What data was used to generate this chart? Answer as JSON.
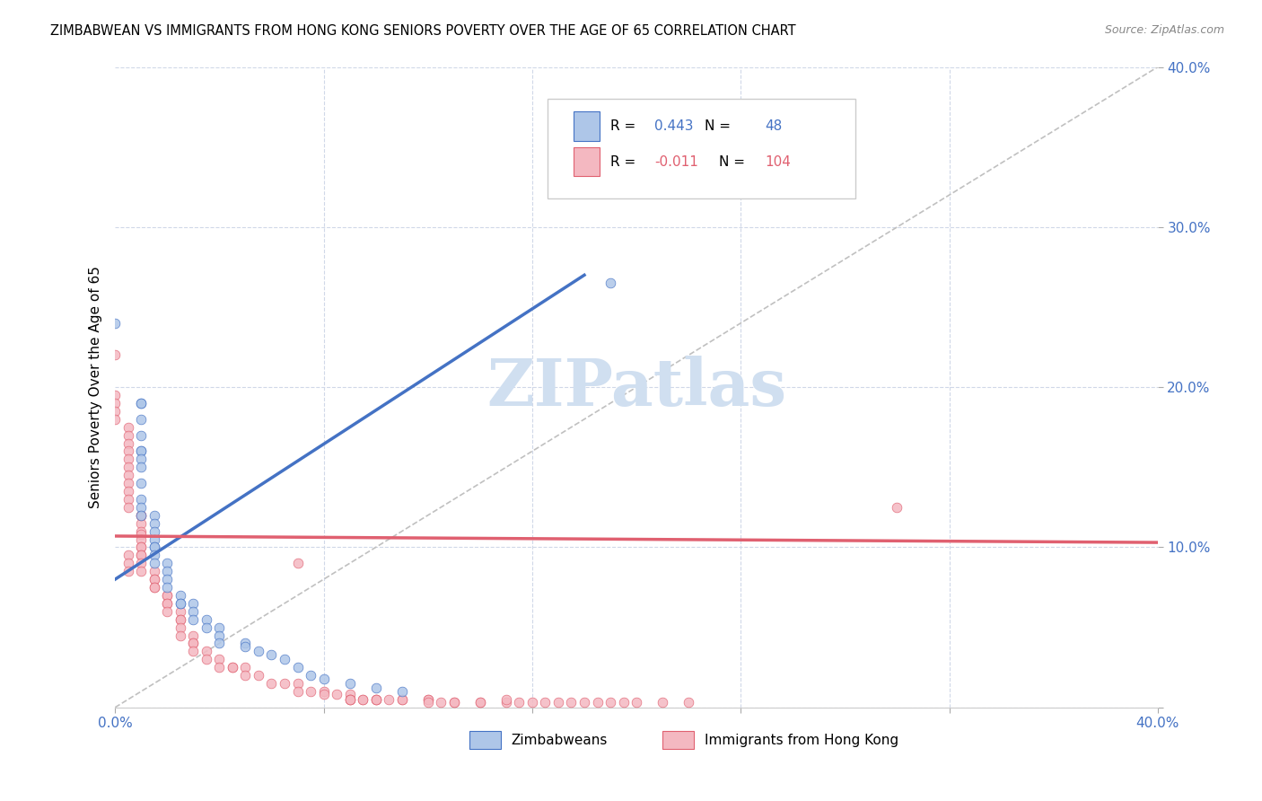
{
  "title": "ZIMBABWEAN VS IMMIGRANTS FROM HONG KONG SENIORS POVERTY OVER THE AGE OF 65 CORRELATION CHART",
  "source": "Source: ZipAtlas.com",
  "ylabel": "Seniors Poverty Over the Age of 65",
  "xlim": [
    0.0,
    0.4
  ],
  "ylim": [
    0.0,
    0.4
  ],
  "blue_color": "#4472c4",
  "pink_line_color": "#e06070",
  "blue_scatter_color": "#aec6e8",
  "pink_scatter_color": "#f4b8c1",
  "blue_line_color": "#4472c4",
  "diagonal_color": "#c0c0c0",
  "watermark": "ZIPatlas",
  "watermark_color": "#d0dff0",
  "blue_points": [
    [
      0.0,
      0.24
    ],
    [
      0.01,
      0.19
    ],
    [
      0.01,
      0.19
    ],
    [
      0.01,
      0.18
    ],
    [
      0.01,
      0.17
    ],
    [
      0.01,
      0.16
    ],
    [
      0.01,
      0.16
    ],
    [
      0.01,
      0.155
    ],
    [
      0.01,
      0.15
    ],
    [
      0.01,
      0.14
    ],
    [
      0.01,
      0.13
    ],
    [
      0.01,
      0.125
    ],
    [
      0.01,
      0.12
    ],
    [
      0.015,
      0.12
    ],
    [
      0.015,
      0.115
    ],
    [
      0.015,
      0.11
    ],
    [
      0.015,
      0.105
    ],
    [
      0.015,
      0.1
    ],
    [
      0.015,
      0.1
    ],
    [
      0.015,
      0.095
    ],
    [
      0.015,
      0.09
    ],
    [
      0.02,
      0.09
    ],
    [
      0.02,
      0.085
    ],
    [
      0.02,
      0.08
    ],
    [
      0.02,
      0.075
    ],
    [
      0.025,
      0.07
    ],
    [
      0.025,
      0.065
    ],
    [
      0.025,
      0.065
    ],
    [
      0.03,
      0.065
    ],
    [
      0.03,
      0.06
    ],
    [
      0.03,
      0.055
    ],
    [
      0.035,
      0.055
    ],
    [
      0.035,
      0.05
    ],
    [
      0.04,
      0.05
    ],
    [
      0.04,
      0.045
    ],
    [
      0.04,
      0.04
    ],
    [
      0.05,
      0.04
    ],
    [
      0.05,
      0.038
    ],
    [
      0.055,
      0.035
    ],
    [
      0.06,
      0.033
    ],
    [
      0.065,
      0.03
    ],
    [
      0.07,
      0.025
    ],
    [
      0.075,
      0.02
    ],
    [
      0.08,
      0.018
    ],
    [
      0.09,
      0.015
    ],
    [
      0.1,
      0.012
    ],
    [
      0.11,
      0.01
    ],
    [
      0.19,
      0.265
    ]
  ],
  "pink_points": [
    [
      0.0,
      0.22
    ],
    [
      0.0,
      0.195
    ],
    [
      0.0,
      0.19
    ],
    [
      0.0,
      0.185
    ],
    [
      0.0,
      0.18
    ],
    [
      0.005,
      0.175
    ],
    [
      0.005,
      0.17
    ],
    [
      0.005,
      0.165
    ],
    [
      0.005,
      0.16
    ],
    [
      0.005,
      0.155
    ],
    [
      0.005,
      0.15
    ],
    [
      0.005,
      0.145
    ],
    [
      0.005,
      0.14
    ],
    [
      0.005,
      0.135
    ],
    [
      0.005,
      0.13
    ],
    [
      0.005,
      0.125
    ],
    [
      0.01,
      0.12
    ],
    [
      0.01,
      0.115
    ],
    [
      0.01,
      0.11
    ],
    [
      0.01,
      0.108
    ],
    [
      0.01,
      0.105
    ],
    [
      0.01,
      0.1
    ],
    [
      0.01,
      0.1
    ],
    [
      0.01,
      0.095
    ],
    [
      0.01,
      0.095
    ],
    [
      0.01,
      0.09
    ],
    [
      0.01,
      0.085
    ],
    [
      0.015,
      0.085
    ],
    [
      0.015,
      0.08
    ],
    [
      0.015,
      0.08
    ],
    [
      0.015,
      0.075
    ],
    [
      0.015,
      0.075
    ],
    [
      0.02,
      0.07
    ],
    [
      0.02,
      0.07
    ],
    [
      0.02,
      0.065
    ],
    [
      0.02,
      0.065
    ],
    [
      0.02,
      0.06
    ],
    [
      0.025,
      0.06
    ],
    [
      0.025,
      0.055
    ],
    [
      0.025,
      0.055
    ],
    [
      0.025,
      0.05
    ],
    [
      0.025,
      0.045
    ],
    [
      0.03,
      0.045
    ],
    [
      0.03,
      0.04
    ],
    [
      0.03,
      0.04
    ],
    [
      0.03,
      0.035
    ],
    [
      0.035,
      0.035
    ],
    [
      0.035,
      0.03
    ],
    [
      0.04,
      0.03
    ],
    [
      0.04,
      0.025
    ],
    [
      0.045,
      0.025
    ],
    [
      0.045,
      0.025
    ],
    [
      0.05,
      0.025
    ],
    [
      0.05,
      0.02
    ],
    [
      0.055,
      0.02
    ],
    [
      0.06,
      0.015
    ],
    [
      0.065,
      0.015
    ],
    [
      0.07,
      0.015
    ],
    [
      0.07,
      0.01
    ],
    [
      0.075,
      0.01
    ],
    [
      0.08,
      0.01
    ],
    [
      0.08,
      0.008
    ],
    [
      0.085,
      0.008
    ],
    [
      0.09,
      0.008
    ],
    [
      0.09,
      0.005
    ],
    [
      0.09,
      0.005
    ],
    [
      0.095,
      0.005
    ],
    [
      0.1,
      0.005
    ],
    [
      0.1,
      0.005
    ],
    [
      0.1,
      0.005
    ],
    [
      0.105,
      0.005
    ],
    [
      0.11,
      0.005
    ],
    [
      0.11,
      0.005
    ],
    [
      0.12,
      0.005
    ],
    [
      0.12,
      0.005
    ],
    [
      0.12,
      0.003
    ],
    [
      0.125,
      0.003
    ],
    [
      0.13,
      0.003
    ],
    [
      0.13,
      0.003
    ],
    [
      0.14,
      0.003
    ],
    [
      0.14,
      0.003
    ],
    [
      0.15,
      0.003
    ],
    [
      0.155,
      0.003
    ],
    [
      0.16,
      0.003
    ],
    [
      0.165,
      0.003
    ],
    [
      0.17,
      0.003
    ],
    [
      0.175,
      0.003
    ],
    [
      0.18,
      0.003
    ],
    [
      0.185,
      0.003
    ],
    [
      0.19,
      0.003
    ],
    [
      0.195,
      0.003
    ],
    [
      0.2,
      0.003
    ],
    [
      0.21,
      0.003
    ],
    [
      0.22,
      0.003
    ],
    [
      0.09,
      0.005
    ],
    [
      0.095,
      0.005
    ],
    [
      0.07,
      0.09
    ],
    [
      0.15,
      0.005
    ],
    [
      0.3,
      0.125
    ],
    [
      0.005,
      0.095
    ],
    [
      0.005,
      0.09
    ],
    [
      0.005,
      0.085
    ],
    [
      0.01,
      0.12
    ]
  ],
  "blue_line": [
    [
      0.0,
      0.08
    ],
    [
      0.18,
      0.27
    ]
  ],
  "pink_line": [
    [
      0.0,
      0.107
    ],
    [
      0.4,
      0.103
    ]
  ],
  "diagonal_line": [
    [
      0.0,
      0.0
    ],
    [
      0.4,
      0.4
    ]
  ]
}
